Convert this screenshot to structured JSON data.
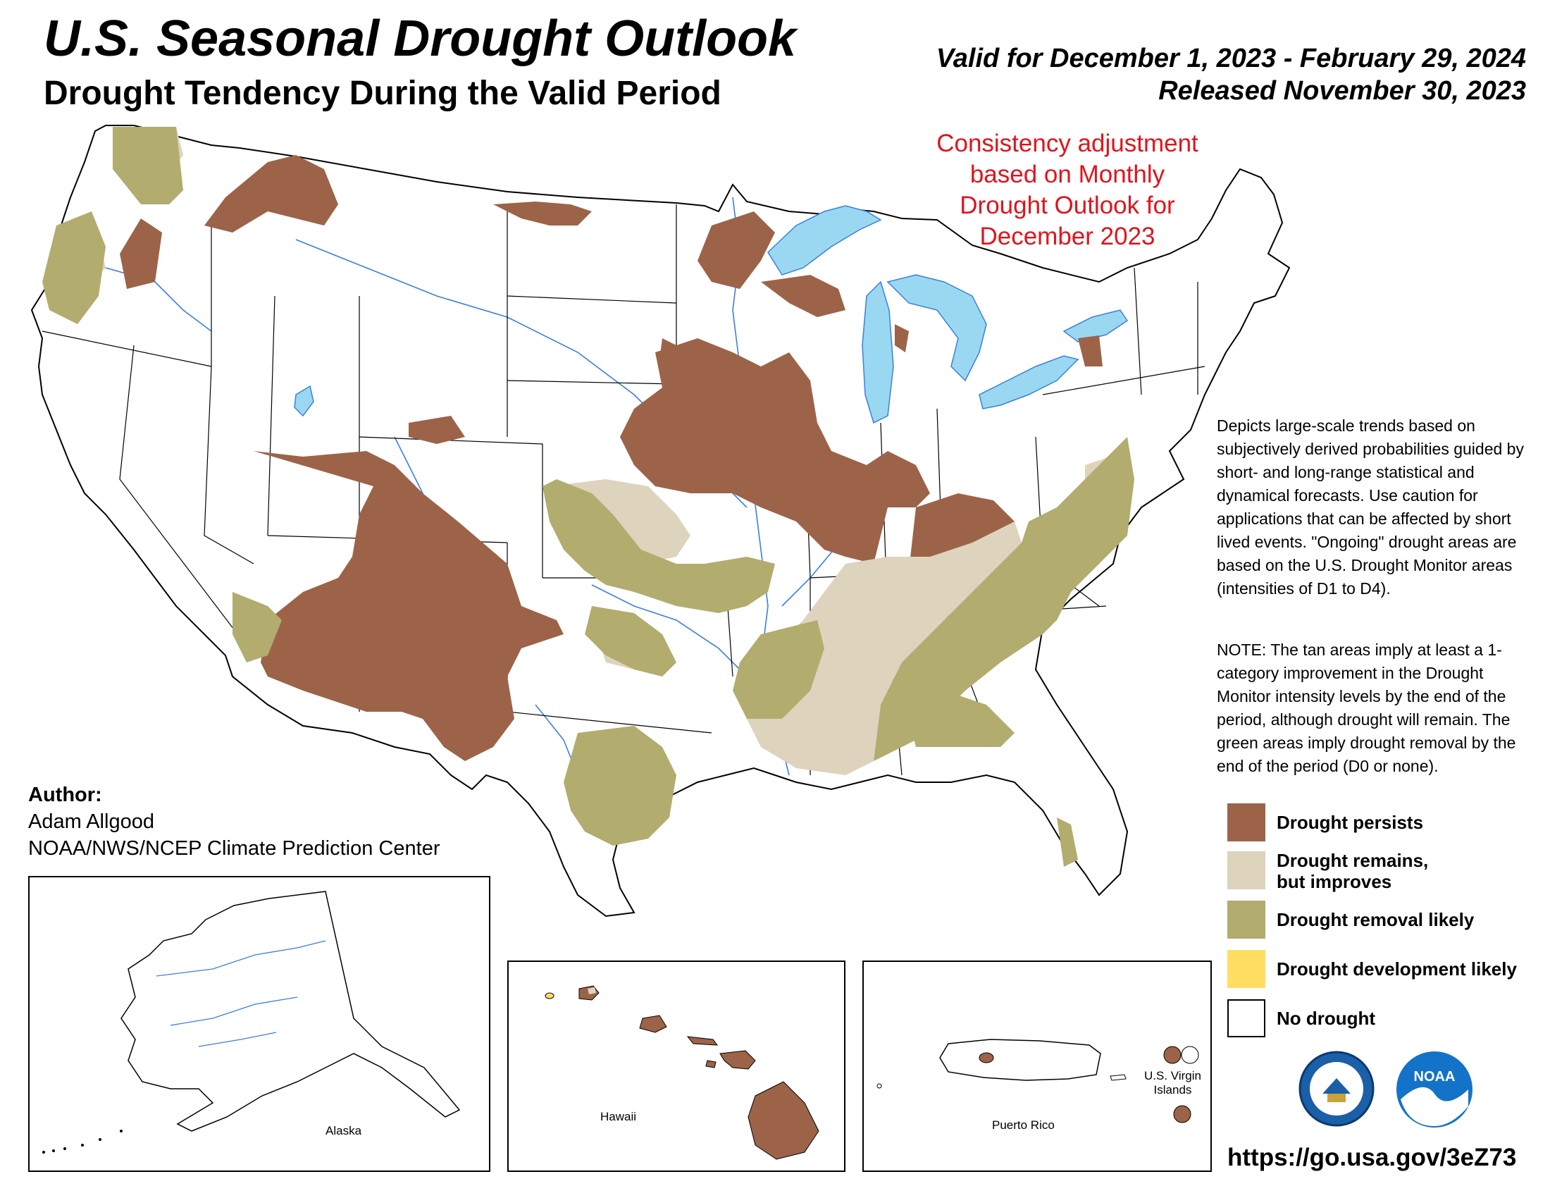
{
  "header": {
    "title": "U.S. Seasonal Drought Outlook",
    "subtitle": "Drought Tendency During the Valid Period",
    "valid_for": "Valid for December 1, 2023 - February 29, 2024",
    "released": "Released November 30, 2023"
  },
  "consistency_note": {
    "lines": [
      "Consistency adjustment",
      "based on Monthly",
      "Drought Outlook for",
      "December 2023"
    ]
  },
  "description": {
    "depicts": "Depicts large-scale trends based on subjectively derived probabilities guided by short- and long-range statistical and dynamical forecasts. Use caution for applications that can be affected by short lived events. \"Ongoing\" drought areas are based on the U.S. Drought Monitor areas (intensities of D1 to D4).",
    "note": "NOTE: The tan areas imply at least a 1-category improvement in the Drought Monitor intensity levels by the end of the period, although drought will remain. The green areas imply drought removal by the end of the period (D0 or none)."
  },
  "legend": [
    {
      "lines": [
        "Drought persists"
      ],
      "color": "#9c6349"
    },
    {
      "lines": [
        "Drought remains,",
        "but improves"
      ],
      "color": "#ded3bd"
    },
    {
      "lines": [
        "Drought removal likely"
      ],
      "color": "#b2ac6f"
    },
    {
      "lines": [
        "Drought development likely"
      ],
      "color": "#ffde63"
    },
    {
      "lines": [
        "No drought"
      ],
      "color": "#ffffff"
    }
  ],
  "author": {
    "label": "Author:",
    "name": "Adam Allgood",
    "org": "NOAA/NWS/NCEP Climate Prediction Center"
  },
  "insets": {
    "alaska": "Alaska",
    "hawaii": "Hawaii",
    "puerto_rico": "Puerto Rico",
    "virgin_islands": [
      "U.S. Virgin",
      "Islands"
    ]
  },
  "logos": {
    "commerce": "commerce-seal-icon",
    "noaa": "NOAA"
  },
  "url": "https://go.usa.gov/3eZ73",
  "colors": {
    "persists": "#9c6349",
    "improves": "#ded3bd",
    "removal": "#b2ac6f",
    "development": "#ffde63",
    "water": "#99d8f0",
    "rivers": "#3a7fe0",
    "note_red": "#e0141c"
  }
}
